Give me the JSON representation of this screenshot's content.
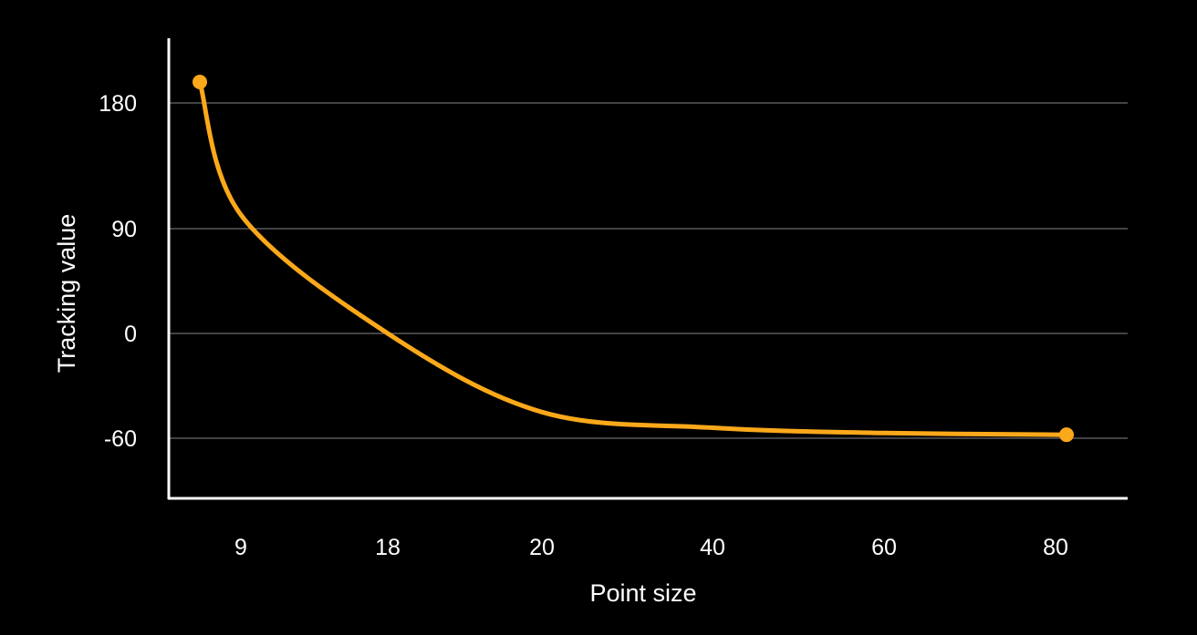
{
  "chart_data": {
    "type": "line",
    "title": "",
    "xlabel": "Point size",
    "ylabel": "Tracking value",
    "x_scale": "categorical",
    "x_ticks": [
      "9",
      "18",
      "20",
      "40",
      "60",
      "80"
    ],
    "y_ticks": [
      180,
      90,
      0,
      -60
    ],
    "grid": true,
    "series": [
      {
        "color": "#FBA81A",
        "endpoints": [
          {
            "x": 8,
            "y": 195
          },
          {
            "x": 81,
            "y": -58
          }
        ],
        "points": [
          {
            "x": 8,
            "y": 195
          },
          {
            "x": 9,
            "y": 100
          },
          {
            "x": 18,
            "y": 0
          },
          {
            "x": 20,
            "y": -45
          },
          {
            "x": 40,
            "y": -54
          },
          {
            "x": 60,
            "y": -57
          },
          {
            "x": 81,
            "y": -58
          }
        ]
      }
    ]
  }
}
